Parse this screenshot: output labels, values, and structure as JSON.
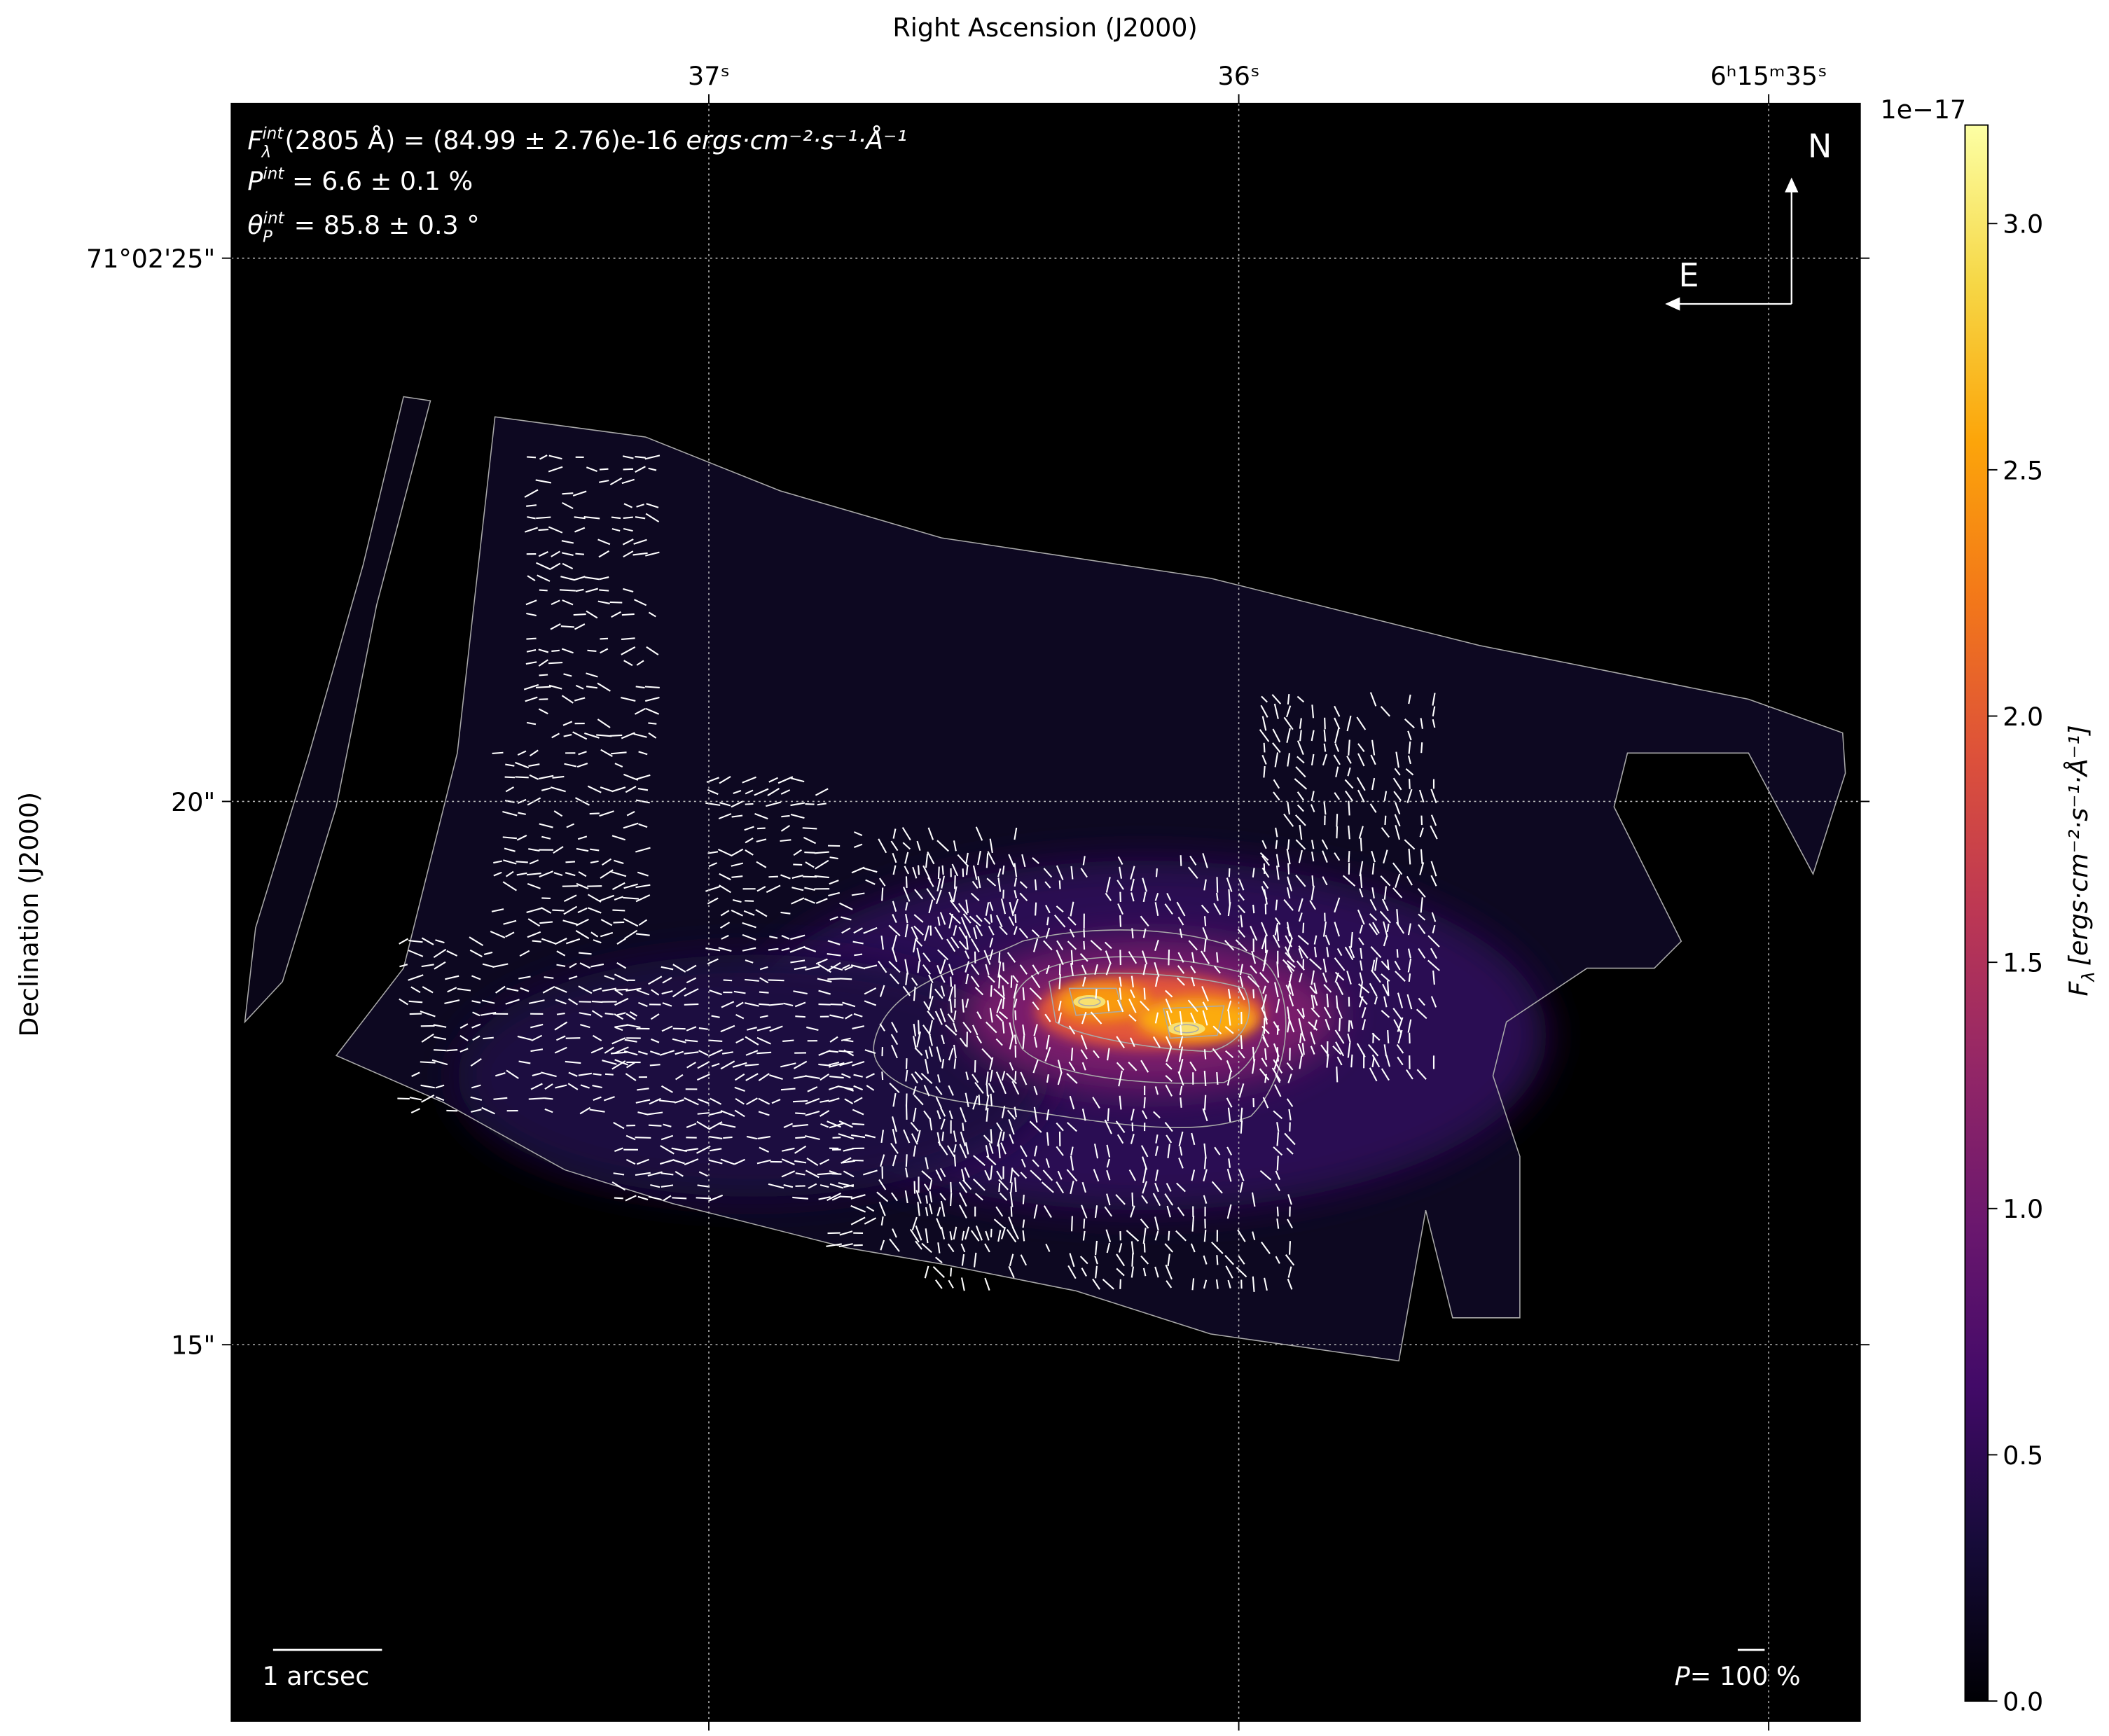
{
  "chart_data": {
    "type": "heatmap",
    "colormap": "inferno",
    "xlabel": "Right Ascension (J2000)",
    "ylabel": "Declination (J2000)",
    "x_ticks": [
      "37ˢ",
      "36ˢ",
      "6ʰ15ᵐ35ˢ"
    ],
    "y_ticks": [
      "71°02'25\"",
      "20\"",
      "15\""
    ],
    "grid": true,
    "colorbar": {
      "label_symbol": "F",
      "label_sub": "λ",
      "label_unit": "[ergs·cm⁻²·s⁻¹·Å⁻¹]",
      "offset": "1e−17",
      "range": [
        0.0,
        3.2
      ],
      "ticks": [
        "0.0",
        "0.5",
        "1.0",
        "1.5",
        "2.0",
        "2.5",
        "3.0"
      ],
      "tick_values": [
        0.0,
        0.5,
        1.0,
        1.5,
        2.0,
        2.5,
        3.0
      ]
    },
    "annotations": {
      "flux": {
        "symbol": "F",
        "sub": "λ",
        "sup": "int",
        "text": "(2805 Å) = (84.99 ± 2.76)e-16 ",
        "unit": "ergs·cm⁻²·s⁻¹·Å⁻¹"
      },
      "pol": {
        "symbol": "P",
        "sup": "int",
        "text": " = 6.6 ± 0.1 %"
      },
      "angle": {
        "symbol": "θ",
        "sub": "P",
        "sup": "int",
        "text": " = 85.8 ± 0.3 °"
      }
    },
    "compass": {
      "north": "N",
      "east": "E"
    },
    "scale_bar": "1 arcsec",
    "pol_scale": {
      "symbol": "P",
      "text": "= 100 %"
    },
    "peak_value": 3.2,
    "vector_color": "#ffffff",
    "contour_color": "#aaaaaa"
  }
}
